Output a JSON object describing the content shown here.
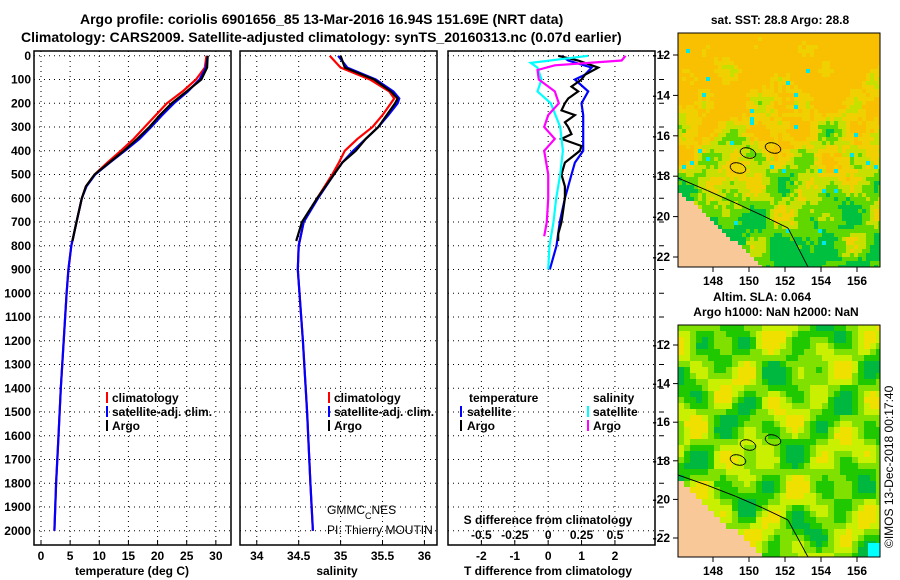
{
  "title": {
    "line1": "Argo profile: coriolis 6901656_85 13-Mar-2016 16.94S 151.69E (NRT data)",
    "line2": "Climatology: CARS2009. Satellite-adjusted climatology: synTS_20160313.nc (0.07d earlier)"
  },
  "colors": {
    "climatology": "#ff0000",
    "satellite": "#0000ff",
    "argo": "#000000",
    "s_satellite": "#00ffff",
    "s_argo": "#ff00ff",
    "land": "#f8c898"
  },
  "depth_ticks": [
    "0",
    "100",
    "200",
    "300",
    "400",
    "500",
    "600",
    "700",
    "800",
    "900",
    "1000",
    "1100",
    "1200",
    "1300",
    "1400",
    "1500",
    "1600",
    "1700",
    "1800",
    "1900",
    "2000"
  ],
  "chart_data": [
    {
      "type": "line",
      "xlabel": "temperature (deg C)",
      "ylabel": "depth",
      "xlim": [
        -1.2,
        32.6
      ],
      "ylim": [
        2060,
        -20
      ],
      "xticks": [
        "0",
        "5",
        "10",
        "15",
        "20",
        "25",
        "30"
      ],
      "legend": [
        "climatology",
        "satellite-adj. clim.",
        "Argo"
      ],
      "legend_position": "bottom-right",
      "series": [
        {
          "name": "climatology",
          "depth": [
            0,
            50,
            100,
            150,
            200,
            250,
            300,
            350,
            400,
            450,
            500,
            550,
            600,
            700,
            800,
            900,
            1000,
            1200,
            1400,
            1600,
            1800,
            2000
          ],
          "values": [
            28.4,
            28.1,
            26.6,
            24.3,
            21.6,
            19.7,
            17.8,
            15.9,
            13.7,
            11.4,
            9.2,
            7.7,
            7.0,
            6.1,
            5.2,
            4.7,
            4.4,
            3.9,
            3.4,
            3.0,
            2.6,
            2.3
          ]
        },
        {
          "name": "satellite-adj. clim.",
          "depth": [
            0,
            50,
            100,
            150,
            200,
            250,
            300,
            350,
            400,
            450,
            500,
            550,
            600,
            700,
            800,
            900,
            1000,
            1200,
            1400,
            1600,
            1800,
            2000
          ],
          "values": [
            28.6,
            28.3,
            27.2,
            25.2,
            22.8,
            20.8,
            18.9,
            16.9,
            14.4,
            11.8,
            9.3,
            7.8,
            7.0,
            6.1,
            5.2,
            4.7,
            4.4,
            3.9,
            3.4,
            3.0,
            2.6,
            2.3
          ]
        },
        {
          "name": "Argo",
          "depth": [
            0,
            50,
            100,
            150,
            200,
            250,
            300,
            350,
            400,
            450,
            500,
            550,
            600,
            700,
            780
          ],
          "values": [
            28.6,
            28.5,
            27.5,
            25.0,
            22.4,
            20.4,
            18.6,
            16.5,
            14.2,
            11.7,
            9.2,
            7.7,
            7.0,
            6.1,
            5.4
          ]
        }
      ]
    },
    {
      "type": "line",
      "xlabel": "salinity",
      "xlim": [
        33.8,
        36.15
      ],
      "ylim": [
        2060,
        -20
      ],
      "xticks": [
        "34",
        "34.5",
        "35",
        "35.5",
        "36"
      ],
      "legend": [
        "climatology",
        "satellite-adj. clim.",
        "Argo"
      ],
      "legend_position": "bottom-right",
      "annotation": {
        "line1_a": "GMMC",
        "line1_sub": "C",
        "line1_b": "NES",
        "line2": "PI: Thierry MOUTIN"
      },
      "series": [
        {
          "name": "climatology",
          "depth": [
            0,
            50,
            100,
            150,
            180,
            200,
            250,
            300,
            350,
            400,
            450,
            500,
            600,
            700,
            800,
            900,
            1000,
            1200,
            1500,
            1800,
            2000
          ],
          "values": [
            34.87,
            35.0,
            35.35,
            35.58,
            35.64,
            35.6,
            35.5,
            35.38,
            35.2,
            35.05,
            34.98,
            34.9,
            34.72,
            34.56,
            34.5,
            34.49,
            34.51,
            34.55,
            34.6,
            34.64,
            34.67
          ]
        },
        {
          "name": "satellite-adj. clim.",
          "depth": [
            0,
            50,
            100,
            150,
            180,
            200,
            250,
            300,
            350,
            400,
            450,
            500,
            600,
            700,
            800,
            900,
            1000,
            1200,
            1500,
            1800,
            2000
          ],
          "values": [
            34.97,
            35.08,
            35.42,
            35.63,
            35.7,
            35.68,
            35.57,
            35.45,
            35.3,
            35.15,
            35.02,
            34.92,
            34.73,
            34.56,
            34.5,
            34.49,
            34.51,
            34.55,
            34.6,
            34.64,
            34.67
          ]
        },
        {
          "name": "Argo",
          "depth": [
            0,
            50,
            100,
            150,
            180,
            200,
            250,
            300,
            350,
            400,
            450,
            500,
            600,
            700,
            780
          ],
          "values": [
            35.0,
            35.05,
            35.4,
            35.6,
            35.68,
            35.65,
            35.55,
            35.45,
            35.3,
            35.18,
            35.02,
            34.92,
            34.72,
            34.54,
            34.47
          ]
        }
      ]
    },
    {
      "type": "line",
      "xlabel": "T difference from climatology",
      "xlabel2": "S difference from climatology",
      "xlim": [
        -3.0,
        3.2
      ],
      "ylim": [
        2060,
        -20
      ],
      "xticks": [
        "-2",
        "-1",
        "0",
        "1",
        "2"
      ],
      "xticks_s": [
        "-0.5",
        "-0.25",
        "0",
        "0.25",
        "0.5"
      ],
      "legend_headers": [
        "temperature",
        "salinity"
      ],
      "legend": [
        "satellite",
        "Argo",
        "satellite",
        "Argo"
      ],
      "legend_position": "bottom",
      "series": [
        {
          "name": "T satellite",
          "units": "degC",
          "depth": [
            0,
            20,
            50,
            80,
            100,
            150,
            200,
            250,
            300,
            350,
            400,
            450,
            500,
            600,
            700,
            800,
            900
          ],
          "values": [
            0.4,
            0.6,
            1.3,
            1.1,
            0.8,
            1.2,
            1.0,
            1.05,
            1.05,
            1.05,
            1.05,
            0.8,
            0.7,
            0.5,
            0.35,
            0.25,
            0.05
          ]
        },
        {
          "name": "T Argo",
          "units": "degC",
          "depth": [
            0,
            20,
            50,
            80,
            100,
            130,
            150,
            180,
            200,
            230,
            250,
            280,
            300,
            330,
            350,
            380,
            400,
            450,
            500,
            550,
            600,
            650,
            700,
            750,
            780
          ],
          "values": [
            0.3,
            0.9,
            1.5,
            1.1,
            1.0,
            0.7,
            0.9,
            0.6,
            0.5,
            0.4,
            0.8,
            0.5,
            0.6,
            0.7,
            0.4,
            1.0,
            0.95,
            0.5,
            0.4,
            0.5,
            0.5,
            0.45,
            0.4,
            0.3,
            0.3
          ]
        },
        {
          "name": "S satellite",
          "units": "psu",
          "depth": [
            0,
            30,
            50,
            100,
            150,
            200,
            300,
            400,
            500,
            600,
            700,
            800,
            900
          ],
          "values": [
            0.3,
            -0.13,
            -0.08,
            -0.05,
            -0.08,
            0.02,
            0.09,
            0.11,
            0.09,
            0.06,
            0.04,
            0.01,
            0.0
          ]
        },
        {
          "name": "S Argo",
          "units": "psu",
          "depth": [
            0,
            20,
            40,
            60,
            100,
            150,
            200,
            250,
            300,
            350,
            400,
            500,
            600,
            700,
            760
          ],
          "values": [
            0.58,
            0.55,
            0.05,
            -0.08,
            -0.07,
            0.05,
            0.08,
            0.0,
            -0.03,
            0.05,
            -0.03,
            0.0,
            0.0,
            -0.01,
            -0.03
          ]
        }
      ]
    }
  ],
  "map_sst": {
    "title": "sat. SST: 28.8 Argo: 28.8",
    "lon_ticks": [
      "148",
      "150",
      "152",
      "154",
      "156"
    ],
    "lat_ticks": [
      "-12",
      "-14",
      "-16",
      "-18",
      "-20",
      "-22"
    ]
  },
  "map_sla": {
    "title1": "Altim. SLA: 0.064",
    "title2": "Argo h1000: NaN h2000: NaN",
    "lon_ticks": [
      "148",
      "150",
      "152",
      "154",
      "156"
    ],
    "lat_ticks": [
      "-12",
      "-14",
      "-16",
      "-18",
      "-20",
      "-22"
    ]
  },
  "credit": "©IMOS 13-Dec-2018 00:17:40"
}
